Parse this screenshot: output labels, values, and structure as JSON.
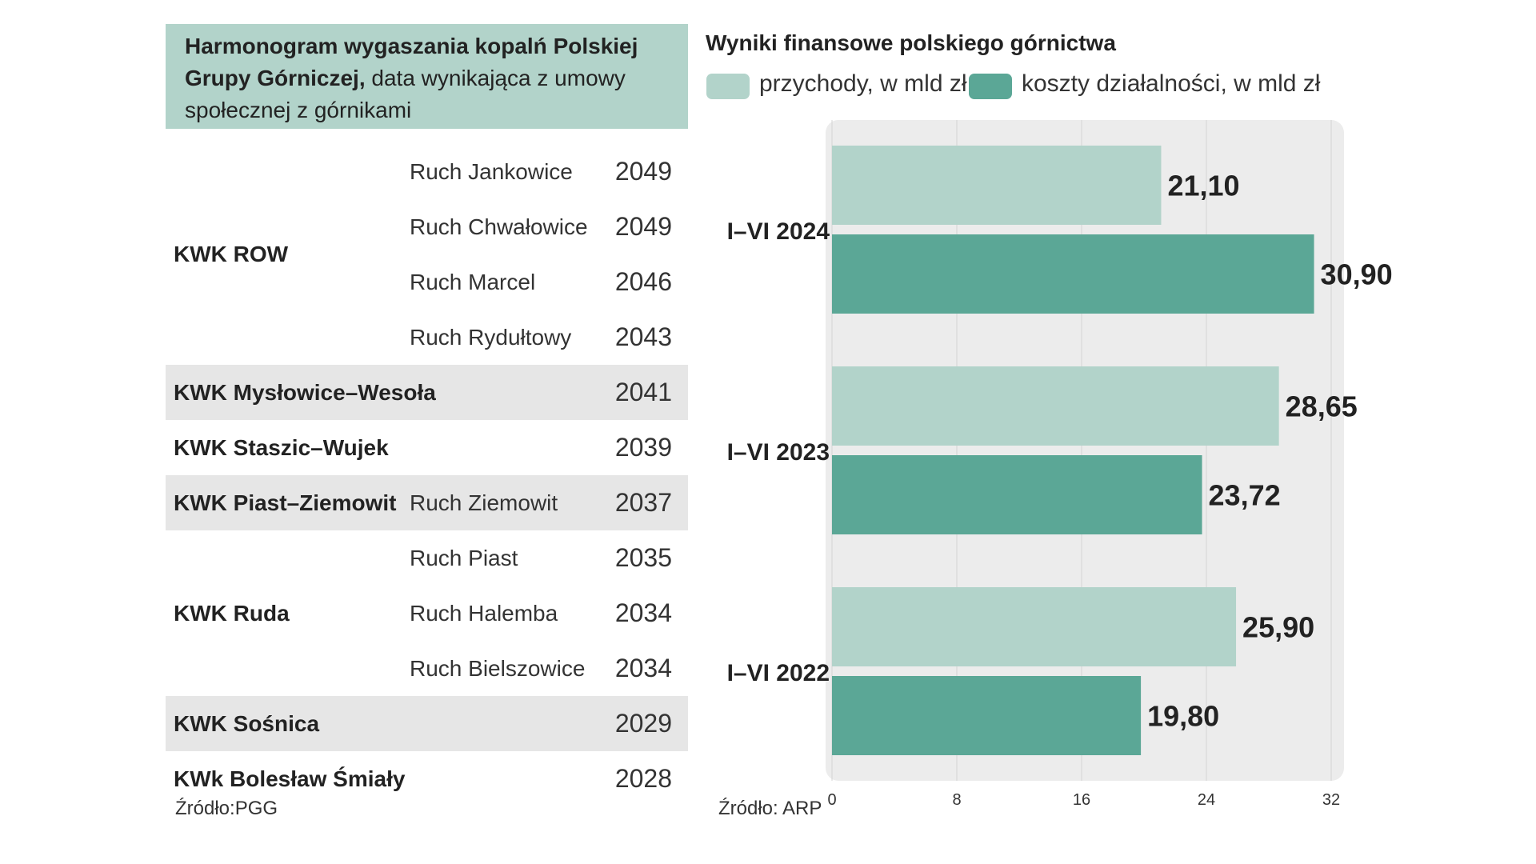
{
  "table": {
    "title_bold": "Harmonogram wygaszania kopalń Polskiej Grupy Górniczej,",
    "title_rest": " data wynikająca z umowy społecznej z górnikami",
    "rows": [
      {
        "group": "",
        "sub": "Ruch Jankowice",
        "year": "2049",
        "shade": false
      },
      {
        "group": "",
        "sub": "Ruch Chwałowice",
        "year": "2049",
        "shade": false
      },
      {
        "group": "",
        "sub": "Ruch Marcel",
        "year": "2046",
        "shade": false
      },
      {
        "group": "",
        "sub": "Ruch Rydułtowy",
        "year": "2043",
        "shade": false
      },
      {
        "group": "KWK Mysłowice–Wesoła",
        "sub": "",
        "year": "2041",
        "shade": true
      },
      {
        "group": "KWK Staszic–Wujek",
        "sub": "",
        "year": "2039",
        "shade": false
      },
      {
        "group": "KWK Piast–Ziemowit",
        "sub": "Ruch Ziemowit",
        "year": "2037",
        "shade": true
      },
      {
        "group": "",
        "sub": "Ruch Piast",
        "year": "2035",
        "shade": false
      },
      {
        "group": "",
        "sub": "Ruch Halemba",
        "year": "2034",
        "shade": false
      },
      {
        "group": "",
        "sub": "Ruch Bielszowice",
        "year": "2034",
        "shade": false
      },
      {
        "group": "KWK Sośnica",
        "sub": "",
        "year": "2029",
        "shade": true
      },
      {
        "group": "KWk Bolesław Śmiały",
        "sub": "",
        "year": "2028",
        "shade": false
      }
    ],
    "spanning_groups": [
      {
        "label": "KWK ROW",
        "first_row": 0,
        "last_row": 3
      },
      {
        "label": "KWK Ruda",
        "first_row": 7,
        "last_row": 9
      }
    ],
    "source": "Źródło:PGG"
  },
  "colors": {
    "header_bg": "#b2d3ca",
    "row_shade": "#e6e6e6",
    "revenue": "#b2d3ca",
    "costs": "#5ba796",
    "plot_bg": "#ececec"
  },
  "chart_data": {
    "type": "bar",
    "orientation": "horizontal",
    "title": "Wyniki finansowe polskiego górnictwa",
    "categories": [
      "I–VI 2024",
      "I–VI 2023",
      "I–VI 2022"
    ],
    "series": [
      {
        "name": "przychody, w mld zł",
        "values": [
          21.1,
          28.65,
          25.9
        ],
        "labels": [
          "21,10",
          "28,65",
          "25,90"
        ]
      },
      {
        "name": "koszty działalności, w mld zł",
        "values": [
          30.9,
          23.72,
          19.8
        ],
        "labels": [
          "30,90",
          "23,72",
          "19,80"
        ]
      }
    ],
    "xlim": [
      0,
      32
    ],
    "xticks": [
      "0",
      "8",
      "16",
      "24",
      "32"
    ],
    "xtick_values": [
      0,
      8,
      16,
      24,
      32
    ],
    "grid": true,
    "legend": "top",
    "source": "Źródło: ARP"
  }
}
